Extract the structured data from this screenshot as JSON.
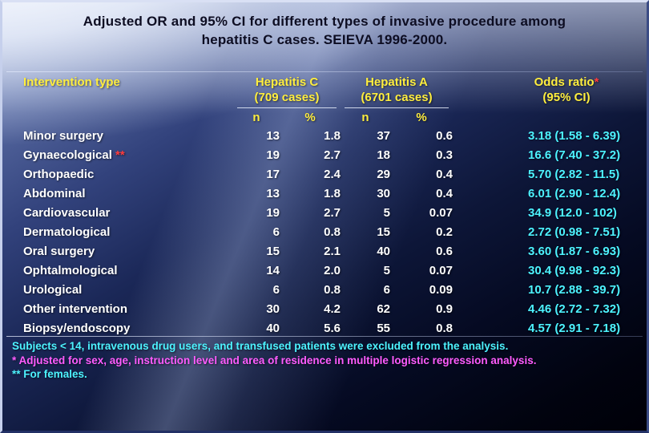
{
  "colors": {
    "title_text": "#0d0d22",
    "yellow": "#ffee3e",
    "white": "#ffffff",
    "cyan": "#4df3ff",
    "magenta": "#ff5cff",
    "red": "#ff3b3b"
  },
  "title": {
    "line1": "Adjusted OR and 95% CI for different types of invasive procedure among",
    "line2": "hepatitis C cases. SEIEVA 1996-2000."
  },
  "table": {
    "intervention_header": "Intervention type",
    "hepatitis_c": {
      "name": "Hepatitis C",
      "cases": "(709 cases)"
    },
    "hepatitis_a": {
      "name": "Hepatitis A",
      "cases": "(6701 cases)"
    },
    "odds_ratio": {
      "name": "Odds ratio",
      "star": "*",
      "sub": "(95% CI)"
    },
    "sub_n": "n",
    "sub_pct": "%",
    "rows": [
      {
        "label": "Minor surgery",
        "flag": "",
        "hc_n": "13",
        "hc_pct": "1.8",
        "ha_n": "37",
        "ha_pct": "0.6",
        "or_ci": "3.18 (1.58 - 6.39)"
      },
      {
        "label": "Gynaecological",
        "flag": " **",
        "hc_n": "19",
        "hc_pct": "2.7",
        "ha_n": "18",
        "ha_pct": "0.3",
        "or_ci": "16.6 (7.40 - 37.2)"
      },
      {
        "label": "Orthopaedic",
        "flag": "",
        "hc_n": "17",
        "hc_pct": "2.4",
        "ha_n": "29",
        "ha_pct": "0.4",
        "or_ci": "5.70 (2.82 - 11.5)"
      },
      {
        "label": "Abdominal",
        "flag": "",
        "hc_n": "13",
        "hc_pct": "1.8",
        "ha_n": "30",
        "ha_pct": "0.4",
        "or_ci": "6.01 (2.90 - 12.4)"
      },
      {
        "label": "Cardiovascular",
        "flag": "",
        "hc_n": "19",
        "hc_pct": "2.7",
        "ha_n": "5",
        "ha_pct": "0.07",
        "or_ci": "34.9 (12.0 - 102)"
      },
      {
        "label": "Dermatological",
        "flag": "",
        "hc_n": "6",
        "hc_pct": "0.8",
        "ha_n": "15",
        "ha_pct": "0.2",
        "or_ci": "2.72 (0.98 - 7.51)"
      },
      {
        "label": "Oral surgery",
        "flag": "",
        "hc_n": "15",
        "hc_pct": "2.1",
        "ha_n": "40",
        "ha_pct": "0.6",
        "or_ci": "3.60 (1.87 - 6.93)"
      },
      {
        "label": "Ophtalmological",
        "flag": "",
        "hc_n": "14",
        "hc_pct": "2.0",
        "ha_n": "5",
        "ha_pct": "0.07",
        "or_ci": "30.4 (9.98 - 92.3)"
      },
      {
        "label": "Urological",
        "flag": "",
        "hc_n": "6",
        "hc_pct": "0.8",
        "ha_n": "6",
        "ha_pct": "0.09",
        "or_ci": "10.7 (2.88 - 39.7)"
      },
      {
        "label": "Other intervention",
        "flag": "",
        "hc_n": "30",
        "hc_pct": "4.2",
        "ha_n": "62",
        "ha_pct": "0.9",
        "or_ci": "4.46 (2.72 - 7.32)"
      },
      {
        "label": "Biopsy/endoscopy",
        "flag": "",
        "hc_n": "40",
        "hc_pct": "5.6",
        "ha_n": "55",
        "ha_pct": "0.8",
        "or_ci": "4.57 (2.91 - 7.18)"
      }
    ]
  },
  "notes": {
    "line1": "Subjects < 14, intravenous drug users, and transfused patients were excluded from the analysis.",
    "line2": "* Adjusted for sex, age, instruction level and area of residence in multiple logistic regression analysis.",
    "line3": "** For females."
  }
}
